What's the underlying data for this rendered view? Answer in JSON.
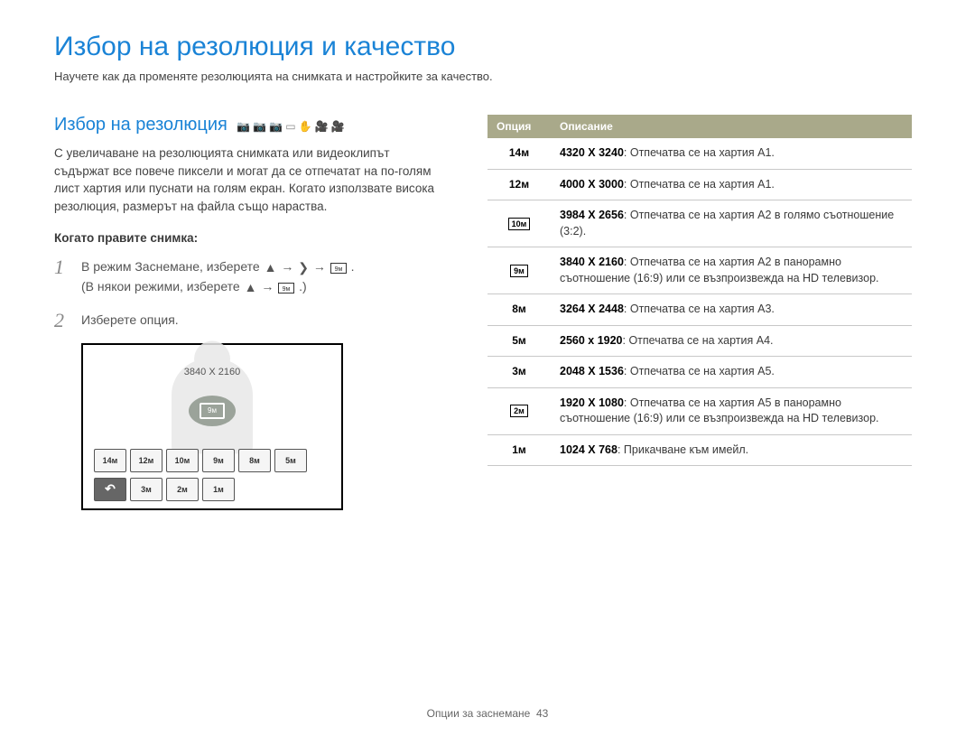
{
  "page": {
    "title": "Избор на резолюция и качество",
    "subtitle": "Научете как да променяте резолюцията на снимката и настройките за качество.",
    "footer_label": "Опции за заснемане",
    "footer_page": "43"
  },
  "section": {
    "heading": "Избор на резолюция",
    "mode_icons": [
      "📷",
      "📷",
      "📷",
      "▭",
      "✋",
      "🎥",
      "🎥"
    ],
    "description": "С увеличаване на резолюцията снимката или видеоклипът съдържат все повече пиксели и могат да се отпечатат на по-голям лист хартия или пуснати на голям екран. Когато използвате висока резолюция, размерът на файла също нараства.",
    "when_label": "Когато правите снимка:"
  },
  "steps": [
    {
      "num": "1",
      "text_a": "В режим Заснемане, изберете ",
      "text_b": "(В някои режими, изберете ",
      "arrow": " → ",
      "dot": ".",
      "close": ".)"
    },
    {
      "num": "2",
      "text": "Изберете опция."
    }
  ],
  "preview": {
    "resolution_text": "3840 X 2160",
    "selected_chip": "9ᴍ",
    "row1": [
      "14ᴍ",
      "12ᴍ",
      "10ᴍ",
      "9ᴍ",
      "8ᴍ",
      "5ᴍ"
    ],
    "row2_back": "↶",
    "row2": [
      "3ᴍ",
      "2ᴍ",
      "1ᴍ"
    ]
  },
  "table": {
    "header_option": "Опция",
    "header_desc": "Описание",
    "rows": [
      {
        "icon": "14ᴍ",
        "boxed": false,
        "res": "4320 X 3240",
        "desc": ": Отпечатва се на хартия А1."
      },
      {
        "icon": "12ᴍ",
        "boxed": false,
        "res": "4000 X 3000",
        "desc": ": Отпечатва се на хартия А1."
      },
      {
        "icon": "10ᴍ",
        "boxed": true,
        "res": "3984 X 2656",
        "desc": ": Отпечатва се на хартия А2 в голямо съотношение (3:2)."
      },
      {
        "icon": "9ᴍ",
        "boxed": true,
        "res": "3840 X 2160",
        "desc": ": Отпечатва се на хартия А2 в панорамно съотношение (16:9) или се възпроизвежда на HD телевизор."
      },
      {
        "icon": "8ᴍ",
        "boxed": false,
        "res": "3264 X 2448",
        "desc": ": Отпечатва се на хартия А3."
      },
      {
        "icon": "5ᴍ",
        "boxed": false,
        "res": "2560 x 1920",
        "desc": ": Отпечатва се на хартия А4."
      },
      {
        "icon": "3ᴍ",
        "boxed": false,
        "res": "2048 X 1536",
        "desc": ": Отпечатва се на хартия А5."
      },
      {
        "icon": "2ᴍ",
        "boxed": true,
        "res": "1920 X 1080",
        "desc": ": Отпечатва се на хартия А5 в панорамно съотношение (16:9) или се възпроизвежда на HD телевизор."
      },
      {
        "icon": "1ᴍ",
        "boxed": false,
        "res": "1024 X 768",
        "desc": ": Прикачване към имейл."
      }
    ]
  }
}
